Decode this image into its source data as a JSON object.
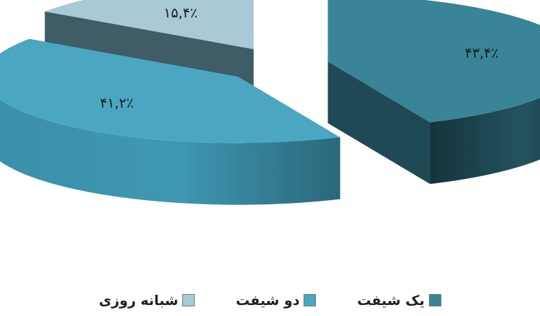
{
  "chart_data": {
    "type": "pie",
    "style": "3d-exploded",
    "slices": [
      {
        "label": "یک شیفت",
        "value": 43.4,
        "value_label": "۴۳,۴٪",
        "color": "#3a8497",
        "side_color": "#1f4a55"
      },
      {
        "label": "دو شیفت",
        "value": 41.2,
        "value_label": "۴۱,۲٪",
        "color": "#4aa6c1",
        "side_color": "#2f6d80"
      },
      {
        "label": "شبانه روزی",
        "value": 15.4,
        "value_label": "۱۵,۴٪",
        "color": "#a9c9d6",
        "side_color": "#3f5c67"
      }
    ],
    "legend": {
      "position": "bottom",
      "items": [
        {
          "label": "یک شیفت",
          "color": "#3a8497"
        },
        {
          "label": "دو شیفت",
          "color": "#4aa6c1"
        },
        {
          "label": "شبانه روزی",
          "color": "#a9c9d6"
        }
      ]
    }
  }
}
